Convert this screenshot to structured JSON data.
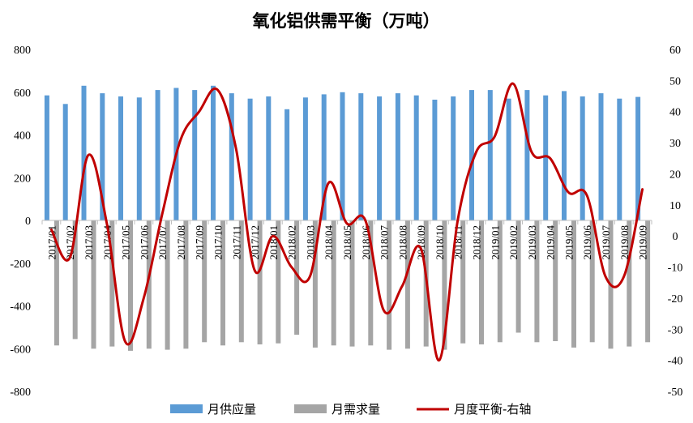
{
  "chart_data": {
    "type": "bar+line",
    "title": "氧化铝供需平衡（万吨）",
    "categories": [
      "2017/01",
      "2017/02",
      "2017/03",
      "2017/04",
      "2017/05",
      "2017/06",
      "2017/07",
      "2017/08",
      "2017/09",
      "2017/10",
      "2017/11",
      "2017/12",
      "2018/01",
      "2018/02",
      "2018/03",
      "2018/04",
      "2018/05",
      "2018/06",
      "2018/07",
      "2018/08",
      "2018/09",
      "2018/10",
      "2018/11",
      "2018/12",
      "2019/01",
      "2019/02",
      "2019/03",
      "2019/04",
      "2019/05",
      "2019/06",
      "2019/07",
      "2019/08",
      "2019/09"
    ],
    "series": [
      {
        "name": "月供应量",
        "type": "bar",
        "axis": "left",
        "color": "#5b9bd5",
        "values": [
          585,
          545,
          630,
          595,
          580,
          575,
          610,
          620,
          610,
          630,
          595,
          570,
          580,
          520,
          575,
          590,
          600,
          595,
          580,
          595,
          585,
          565,
          580,
          610,
          610,
          570,
          610,
          585,
          605,
          580,
          595,
          570,
          578
        ]
      },
      {
        "name": "月需求量",
        "type": "bar",
        "axis": "left",
        "color": "#a5a5a5",
        "values": [
          -585,
          -555,
          -600,
          -590,
          -610,
          -600,
          -605,
          -600,
          -570,
          -585,
          -570,
          -580,
          -575,
          -535,
          -595,
          -585,
          -590,
          -585,
          -605,
          -600,
          -590,
          -605,
          -575,
          -580,
          -570,
          -525,
          -570,
          -565,
          -595,
          -570,
          -600,
          -590,
          -570
        ]
      },
      {
        "name": "月度平衡-右轴",
        "type": "line",
        "axis": "right",
        "color": "#c00000",
        "values": [
          2,
          -7,
          26,
          4,
          -34,
          -20,
          7,
          31,
          40,
          47,
          28,
          -11,
          0,
          -10,
          -13,
          17,
          4,
          5,
          -24,
          -16,
          -4,
          -40,
          5,
          27,
          32,
          49,
          27,
          25,
          14,
          13,
          -13,
          -13,
          15
        ]
      }
    ],
    "left_axis": {
      "min": -800,
      "max": 800,
      "step": 200
    },
    "right_axis": {
      "min": -50,
      "max": 60,
      "step": 10
    },
    "legend_position": "bottom",
    "grid": false
  }
}
